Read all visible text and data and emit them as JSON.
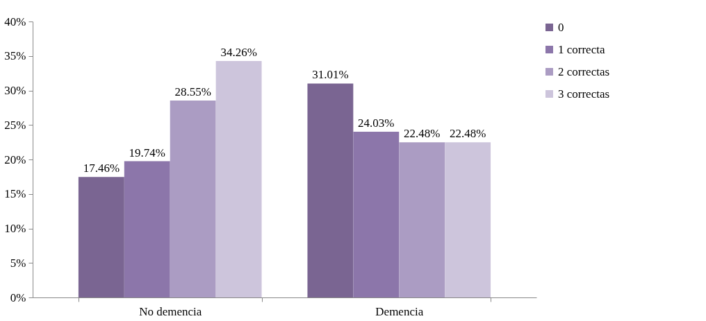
{
  "chart_data": {
    "type": "bar",
    "categories": [
      "No demencia",
      "Demencia"
    ],
    "series": [
      {
        "name": "0",
        "color": "#7a6592",
        "values": [
          17.46,
          31.01
        ],
        "value_labels": [
          "17.46%",
          "31.01%"
        ]
      },
      {
        "name": "1 correcta",
        "color": "#8c76aa",
        "values": [
          19.74,
          24.03
        ],
        "value_labels": [
          "19.74%",
          "24.03%"
        ]
      },
      {
        "name": "2 correctas",
        "color": "#ab9cc3",
        "values": [
          28.55,
          22.48
        ],
        "value_labels": [
          "28.55%",
          "22.48%"
        ]
      },
      {
        "name": "3 correctas",
        "color": "#cdc5dc",
        "values": [
          34.26,
          22.48
        ],
        "value_labels": [
          "34.26%",
          "22.48%"
        ]
      }
    ],
    "ylim": [
      0,
      40
    ],
    "yticks": [
      {
        "value": 0,
        "label": "0%"
      },
      {
        "value": 5,
        "label": "5%"
      },
      {
        "value": 10,
        "label": "10%"
      },
      {
        "value": 15,
        "label": "15%"
      },
      {
        "value": 20,
        "label": "20%"
      },
      {
        "value": 25,
        "label": "25%"
      },
      {
        "value": 30,
        "label": "30%"
      },
      {
        "value": 35,
        "label": "35%"
      },
      {
        "value": 40,
        "label": "40%"
      }
    ],
    "legend": "right"
  }
}
